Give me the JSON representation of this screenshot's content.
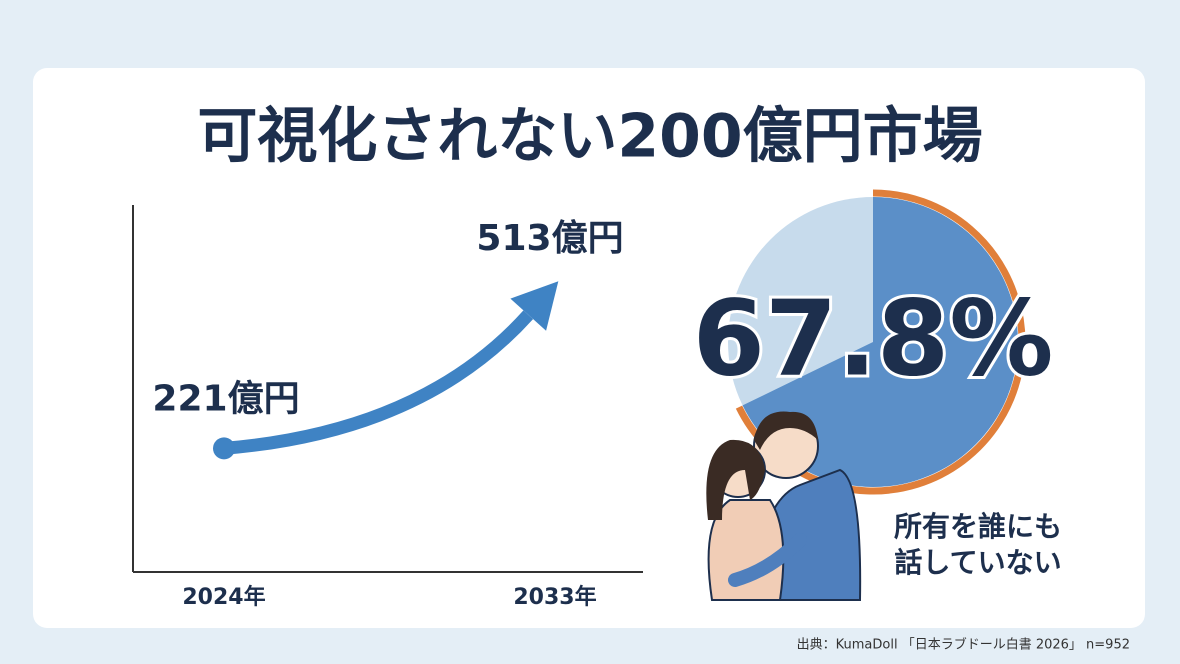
{
  "title": "可視化されない200億円市場",
  "source": "出典：KumaDoll 「日本ラブドール白書 2026」 n=952",
  "chart_data": [
    {
      "type": "line",
      "categories": [
        "2024年",
        "2033年"
      ],
      "values": [
        221,
        513
      ],
      "value_labels": [
        "221億円",
        "513億円"
      ],
      "color": "#3f83c4"
    },
    {
      "type": "pie",
      "values": [
        67.8
      ],
      "value_labels": [
        "67.8%"
      ],
      "color": "#5b8fc8",
      "rest_color": "#c7dbec",
      "ring_color": "#e07f3a",
      "annotation": [
        "所有を誰にも",
        "話していない"
      ]
    }
  ]
}
